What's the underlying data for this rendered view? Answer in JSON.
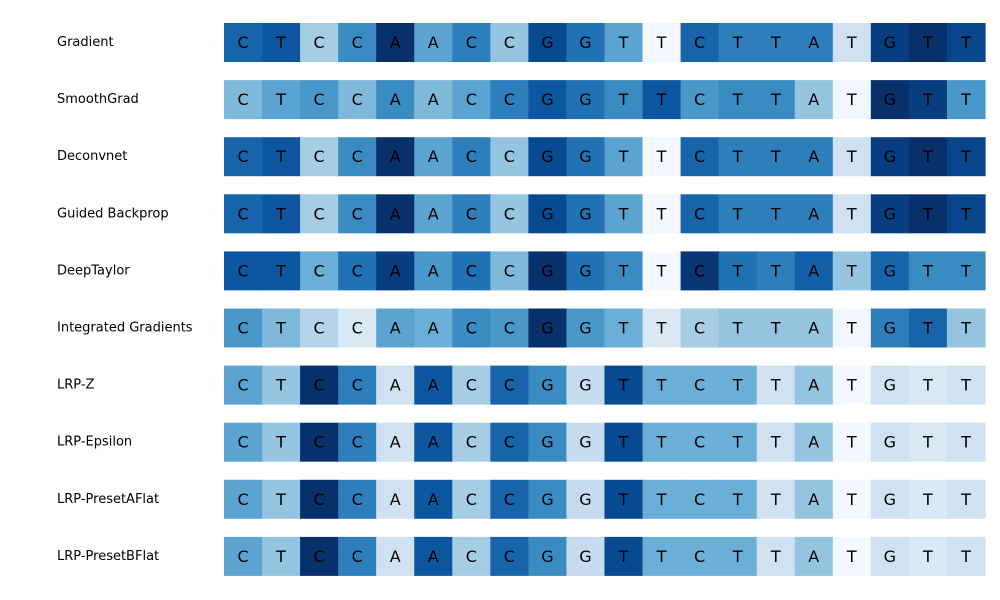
{
  "chart_data": {
    "type": "heatmap",
    "title": "",
    "xlabel": "",
    "ylabel": "",
    "grid": false,
    "colormap": "Blues",
    "sequence": [
      "C",
      "T",
      "C",
      "C",
      "A",
      "A",
      "C",
      "C",
      "G",
      "G",
      "T",
      "T",
      "C",
      "T",
      "T",
      "A",
      "T",
      "G",
      "T",
      "T"
    ],
    "series": [
      {
        "name": "Gradient",
        "values": [
          0.8,
          0.85,
          0.35,
          0.65,
          1.0,
          0.55,
          0.7,
          0.4,
          0.9,
          0.75,
          0.55,
          0.02,
          0.8,
          0.7,
          0.7,
          0.7,
          0.2,
          0.95,
          1.0,
          0.92
        ]
      },
      {
        "name": "SmoothGrad",
        "values": [
          0.45,
          0.55,
          0.6,
          0.45,
          0.65,
          0.45,
          0.55,
          0.7,
          0.85,
          0.75,
          0.65,
          0.85,
          0.6,
          0.65,
          0.65,
          0.4,
          0.03,
          1.0,
          0.95,
          0.6
        ]
      },
      {
        "name": "Deconvnet",
        "values": [
          0.8,
          0.85,
          0.35,
          0.65,
          1.0,
          0.55,
          0.7,
          0.4,
          0.9,
          0.75,
          0.55,
          0.02,
          0.8,
          0.7,
          0.7,
          0.7,
          0.2,
          0.95,
          1.0,
          0.92
        ]
      },
      {
        "name": "Guided Backprop",
        "values": [
          0.8,
          0.85,
          0.35,
          0.65,
          1.0,
          0.55,
          0.7,
          0.4,
          0.9,
          0.75,
          0.55,
          0.02,
          0.8,
          0.7,
          0.7,
          0.7,
          0.2,
          0.95,
          1.0,
          0.92
        ]
      },
      {
        "name": "DeepTaylor",
        "values": [
          0.85,
          0.85,
          0.5,
          0.75,
          0.95,
          0.6,
          0.75,
          0.45,
          1.0,
          0.75,
          0.65,
          0.02,
          0.98,
          0.75,
          0.7,
          0.82,
          0.4,
          0.8,
          0.65,
          0.65
        ]
      },
      {
        "name": "Integrated Gradients",
        "values": [
          0.6,
          0.45,
          0.3,
          0.15,
          0.55,
          0.5,
          0.65,
          0.6,
          1.0,
          0.6,
          0.5,
          0.15,
          0.35,
          0.4,
          0.4,
          0.4,
          0.03,
          0.7,
          0.8,
          0.4
        ]
      },
      {
        "name": "LRP-Z",
        "values": [
          0.55,
          0.4,
          1.0,
          0.7,
          0.2,
          0.85,
          0.35,
          0.8,
          0.65,
          0.25,
          0.9,
          0.5,
          0.5,
          0.5,
          0.2,
          0.4,
          0.02,
          0.2,
          0.15,
          0.2
        ]
      },
      {
        "name": "LRP-Epsilon",
        "values": [
          0.55,
          0.4,
          1.0,
          0.7,
          0.2,
          0.85,
          0.35,
          0.8,
          0.65,
          0.25,
          0.9,
          0.5,
          0.5,
          0.5,
          0.2,
          0.4,
          0.02,
          0.2,
          0.15,
          0.2
        ]
      },
      {
        "name": "LRP-PresetAFlat",
        "values": [
          0.55,
          0.4,
          1.0,
          0.7,
          0.2,
          0.85,
          0.35,
          0.8,
          0.65,
          0.25,
          0.9,
          0.5,
          0.5,
          0.5,
          0.2,
          0.4,
          0.02,
          0.2,
          0.15,
          0.2
        ]
      },
      {
        "name": "LRP-PresetBFlat",
        "values": [
          0.55,
          0.4,
          1.0,
          0.7,
          0.2,
          0.85,
          0.35,
          0.8,
          0.65,
          0.25,
          0.9,
          0.5,
          0.5,
          0.5,
          0.2,
          0.4,
          0.02,
          0.2,
          0.15,
          0.2
        ]
      }
    ]
  }
}
